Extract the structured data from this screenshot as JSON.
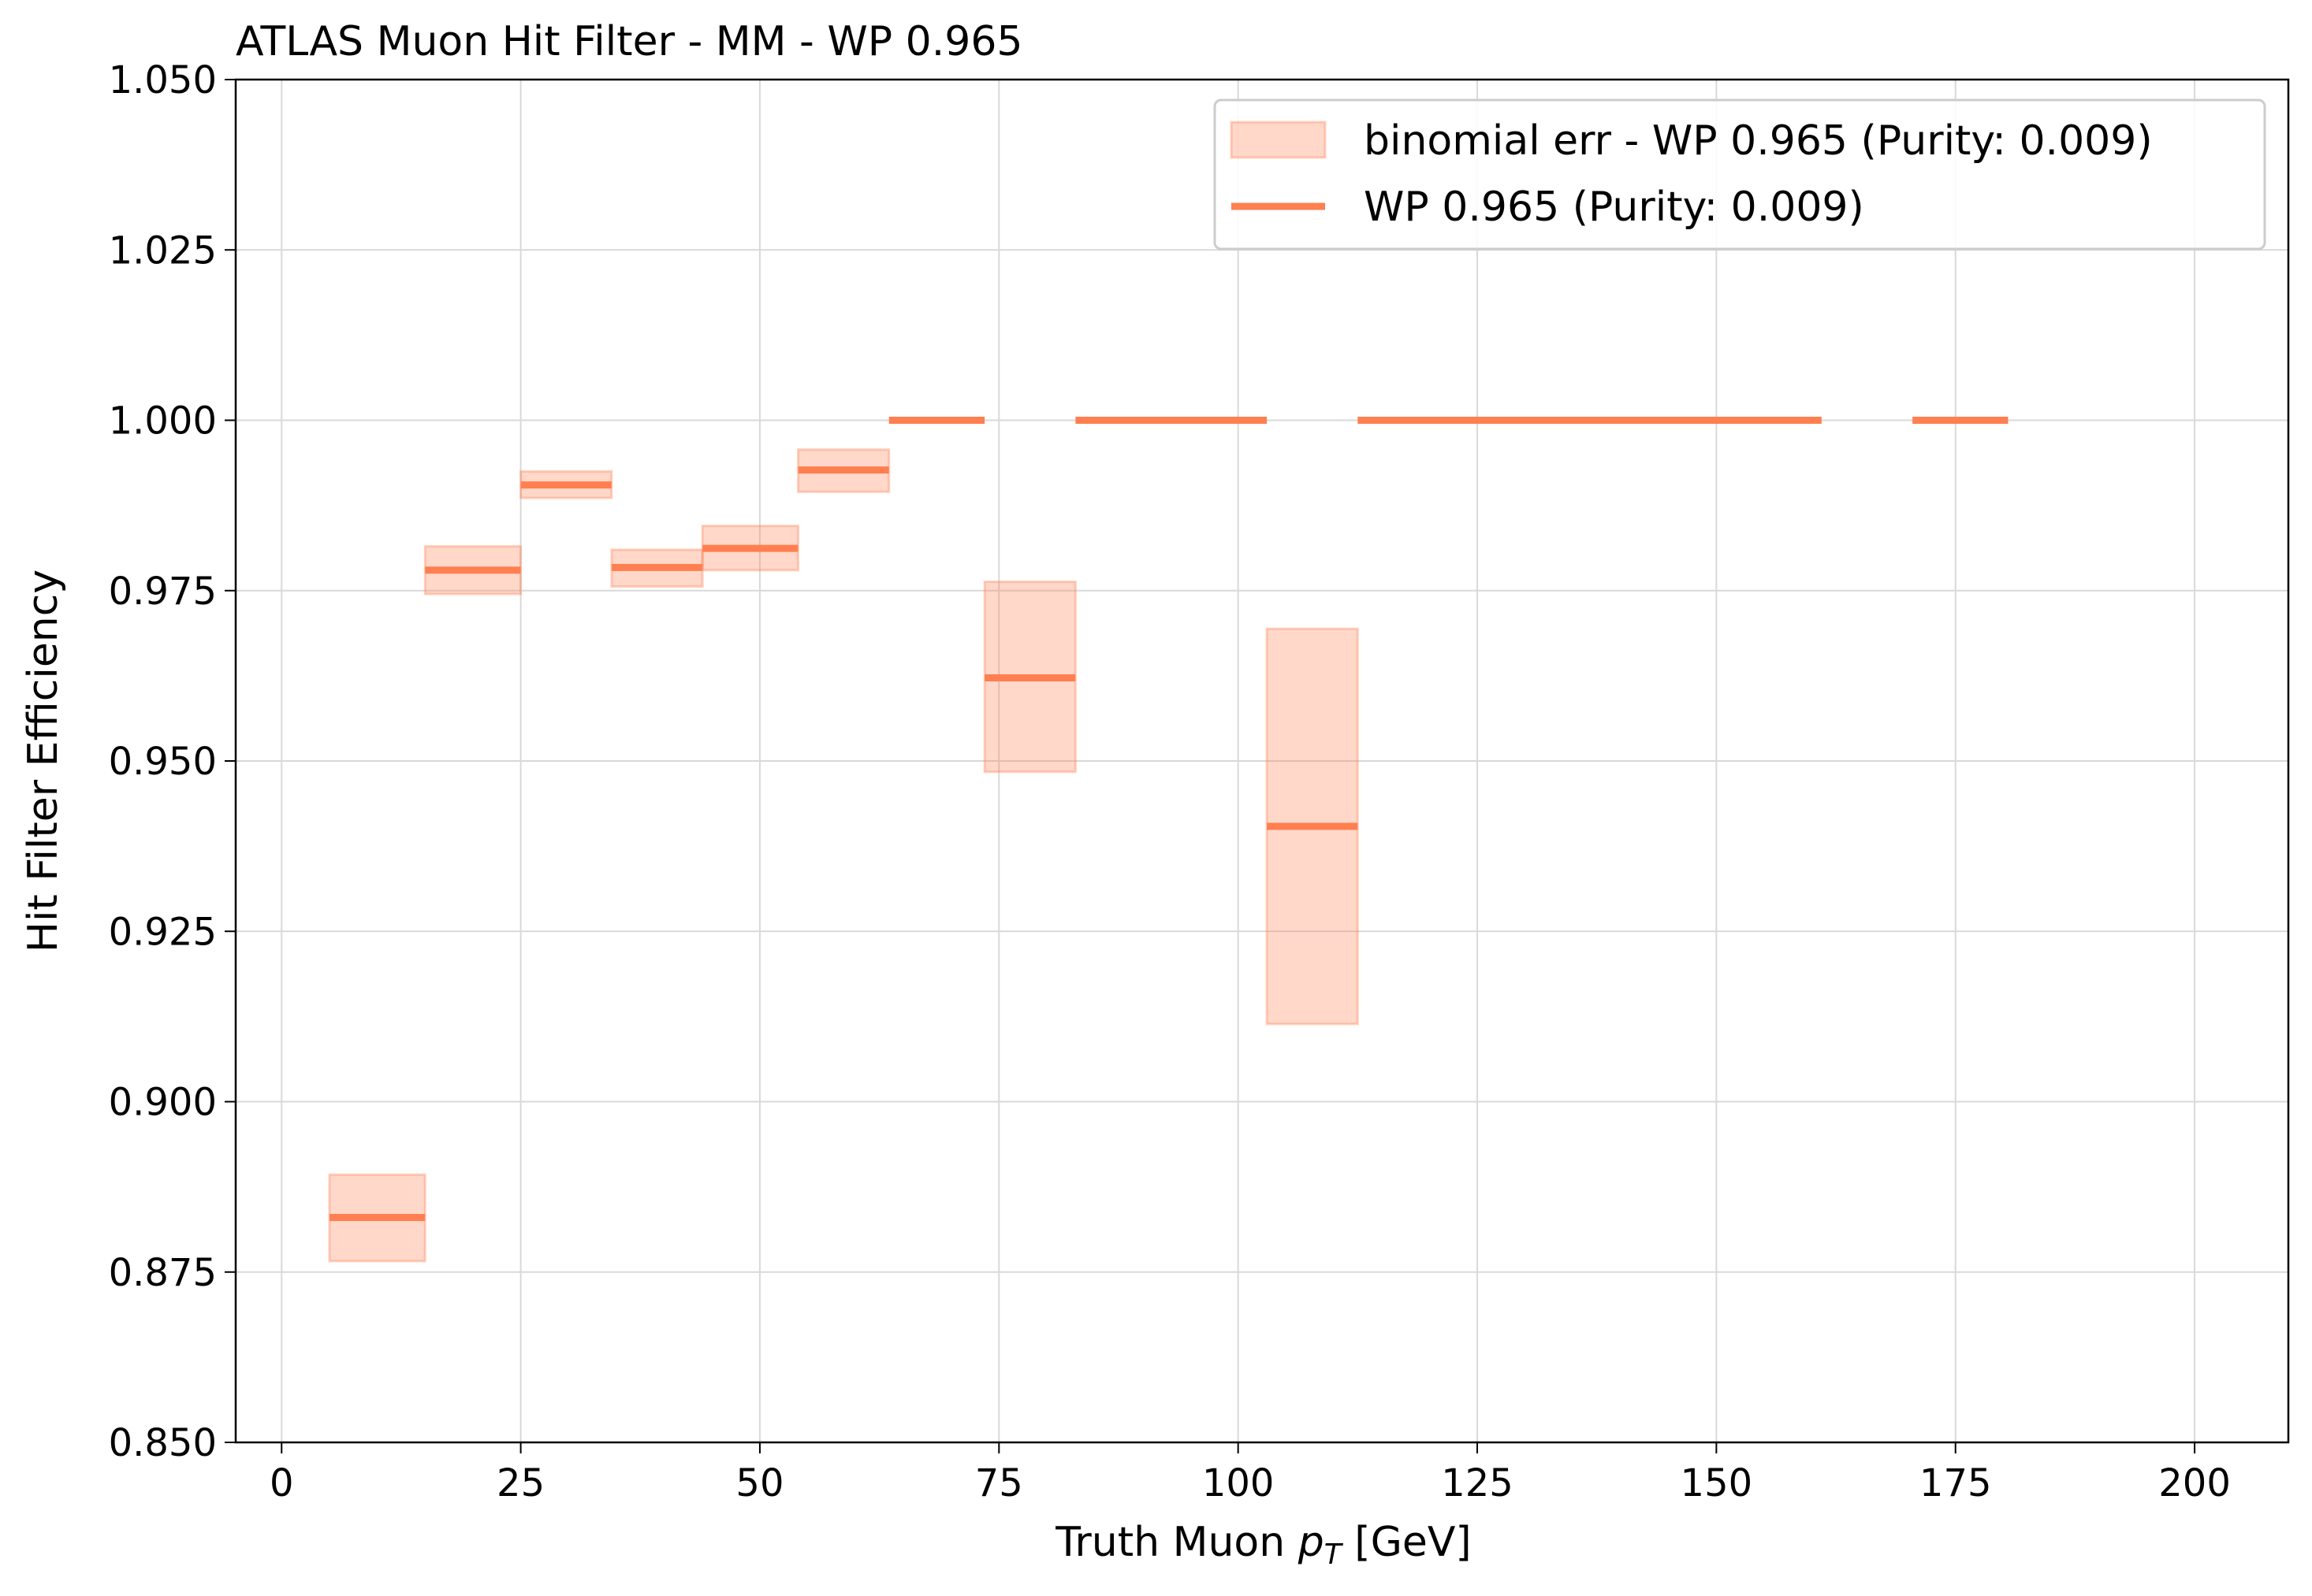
{
  "chart_data": {
    "type": "binned-efficiency",
    "title": "ATLAS Muon Hit Filter - MM - WP 0.965",
    "xlabel": [
      "Truth Muon ",
      "p",
      "T",
      " [GeV]"
    ],
    "ylabel": "Hit Filter Efficiency",
    "x_start": [
      5,
      15,
      25,
      34.5,
      44,
      54,
      63.5,
      73.5,
      83,
      103,
      112.5,
      170.5
    ],
    "x_end": [
      15,
      25,
      34.5,
      44,
      54,
      63.5,
      73.5,
      83,
      103,
      112.5,
      161,
      180.5
    ],
    "series": [
      {
        "name": "binomial err - WP 0.965 (Purity: 0.009)",
        "color": "#ff7f50",
        "lower": [
          0.8766,
          0.9745,
          0.9886,
          0.9756,
          0.978,
          0.9895,
          1.0,
          0.9484,
          1.0,
          0.9114,
          1.0,
          1.0
        ],
        "upper": [
          0.8893,
          0.9815,
          0.9925,
          0.981,
          0.9845,
          0.9957,
          1.0,
          0.9763,
          1.0,
          0.9694,
          1.0,
          1.0
        ]
      },
      {
        "name": "WP 0.965 (Purity: 0.009)",
        "color": "#ff7f50",
        "values": [
          0.883,
          0.978,
          0.9905,
          0.9784,
          0.9812,
          0.9927,
          1.0,
          0.9622,
          1.0,
          0.9404,
          1.0,
          1.0
        ]
      }
    ],
    "xlim": [
      -4.8,
      209.8
    ],
    "ylim": [
      0.85,
      1.05
    ],
    "xticks": [
      0,
      25,
      50,
      75,
      100,
      125,
      150,
      175,
      200
    ],
    "yticks": [
      {
        "value": 0.85,
        "label": "0.850"
      },
      {
        "value": 0.875,
        "label": "0.875"
      },
      {
        "value": 0.9,
        "label": "0.900"
      },
      {
        "value": 0.925,
        "label": "0.925"
      },
      {
        "value": 0.95,
        "label": "0.950"
      },
      {
        "value": 0.975,
        "label": "0.975"
      },
      {
        "value": 1.0,
        "label": "1.000"
      },
      {
        "value": 1.025,
        "label": "1.025"
      },
      {
        "value": 1.05,
        "label": "1.050"
      }
    ],
    "grid": true,
    "legend": "upper right"
  }
}
